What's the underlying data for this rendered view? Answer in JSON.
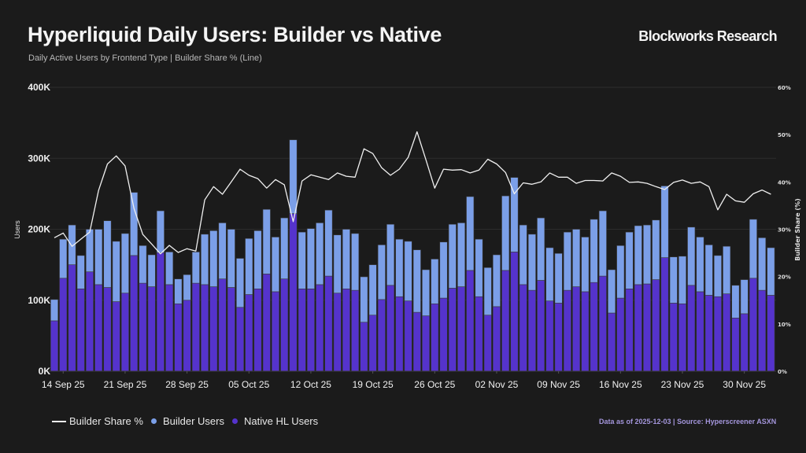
{
  "header": {
    "title": "Hyperliquid Daily Users: Builder vs Native",
    "subtitle": "Daily Active Users by Frontend Type | Builder Share % (Line)",
    "brand": "Blockworks Research"
  },
  "footer": {
    "source": "Data as of 2025-12-03 | Source: Hyperscreener ASXN"
  },
  "colors": {
    "background": "#1b1b1b",
    "builder": "#7b9fe8",
    "native": "#5533cc",
    "line": "#f0f0f0",
    "footer": "#a496dc"
  },
  "chart_data": {
    "type": "bar",
    "stacked": true,
    "title": "Hyperliquid Daily Users: Builder vs Native",
    "subtitle": "Daily Active Users by Frontend Type | Builder Share % (Line)",
    "ylabel": "Users",
    "y2label": "Builder Share (%)",
    "ylim": [
      0,
      400000
    ],
    "y2lim": [
      0,
      60
    ],
    "yticks": [
      "0K",
      "100K",
      "200K",
      "300K",
      "400K"
    ],
    "y2ticks": [
      "0%",
      "10%",
      "20%",
      "30%",
      "40%",
      "50%",
      "60%"
    ],
    "xticks": [
      "14 Sep 25",
      "21 Sep 25",
      "28 Sep 25",
      "05 Oct 25",
      "12 Oct 25",
      "19 Oct 25",
      "26 Oct 25",
      "02 Nov 25",
      "09 Nov 25",
      "16 Nov 25",
      "23 Nov 25",
      "30 Nov 25"
    ],
    "grid": true,
    "legend": "bottom-left",
    "legend_entries": [
      "Builder Share %",
      "Builder Users",
      "Native HL Users"
    ],
    "categories": [
      "2025-09-13",
      "2025-09-14",
      "2025-09-15",
      "2025-09-16",
      "2025-09-17",
      "2025-09-18",
      "2025-09-19",
      "2025-09-20",
      "2025-09-21",
      "2025-09-22",
      "2025-09-23",
      "2025-09-24",
      "2025-09-25",
      "2025-09-26",
      "2025-09-27",
      "2025-09-28",
      "2025-09-29",
      "2025-09-30",
      "2025-10-01",
      "2025-10-02",
      "2025-10-03",
      "2025-10-04",
      "2025-10-05",
      "2025-10-06",
      "2025-10-07",
      "2025-10-08",
      "2025-10-09",
      "2025-10-10",
      "2025-10-11",
      "2025-10-12",
      "2025-10-13",
      "2025-10-14",
      "2025-10-15",
      "2025-10-16",
      "2025-10-17",
      "2025-10-18",
      "2025-10-19",
      "2025-10-20",
      "2025-10-21",
      "2025-10-22",
      "2025-10-23",
      "2025-10-24",
      "2025-10-25",
      "2025-10-26",
      "2025-10-27",
      "2025-10-28",
      "2025-10-29",
      "2025-10-30",
      "2025-10-31",
      "2025-11-01",
      "2025-11-02",
      "2025-11-03",
      "2025-11-04",
      "2025-11-05",
      "2025-11-06",
      "2025-11-07",
      "2025-11-08",
      "2025-11-09",
      "2025-11-10",
      "2025-11-11",
      "2025-11-12",
      "2025-11-13",
      "2025-11-14",
      "2025-11-15",
      "2025-11-16",
      "2025-11-17",
      "2025-11-18",
      "2025-11-19",
      "2025-11-20",
      "2025-11-21",
      "2025-11-22",
      "2025-11-23",
      "2025-11-24",
      "2025-11-25",
      "2025-11-26",
      "2025-11-27",
      "2025-11-28",
      "2025-11-29",
      "2025-11-30",
      "2025-12-01",
      "2025-12-02",
      "2025-12-03"
    ],
    "series": [
      {
        "name": "Native HL Users",
        "kind": "bar",
        "values": [
          71000,
          131000,
          150000,
          116000,
          140000,
          122000,
          118000,
          98000,
          110000,
          163000,
          124000,
          119000,
          167000,
          122000,
          95000,
          100000,
          124000,
          122000,
          119000,
          130000,
          118000,
          90000,
          108000,
          116000,
          137000,
          112000,
          130000,
          222000,
          116000,
          116000,
          122000,
          134000,
          110000,
          116000,
          114000,
          69000,
          79000,
          101000,
          121000,
          105000,
          99000,
          83000,
          78000,
          95000,
          103000,
          117000,
          119000,
          142000,
          105000,
          79000,
          91000,
          142000,
          168000,
          122000,
          114000,
          128000,
          99000,
          96000,
          114000,
          119000,
          112000,
          125000,
          134000,
          82000,
          103000,
          116000,
          122000,
          123000,
          129000,
          160000,
          96000,
          95000,
          121000,
          112000,
          107000,
          105000,
          109000,
          75000,
          81000,
          131000,
          114000,
          107000
        ]
      },
      {
        "name": "Builder Users",
        "kind": "bar",
        "values": [
          30000,
          55000,
          56000,
          47000,
          60000,
          78000,
          94000,
          85000,
          84000,
          89000,
          53000,
          45000,
          59000,
          46000,
          35000,
          36000,
          44000,
          71000,
          79000,
          79000,
          82000,
          69000,
          79000,
          82000,
          91000,
          77000,
          86000,
          104000,
          80000,
          85000,
          87000,
          93000,
          82000,
          84000,
          80000,
          64000,
          71000,
          77000,
          86000,
          81000,
          84000,
          88000,
          65000,
          63000,
          79000,
          90000,
          90000,
          104000,
          81000,
          67000,
          73000,
          105000,
          105000,
          84000,
          79000,
          88000,
          75000,
          70000,
          82000,
          81000,
          77000,
          89000,
          92000,
          61000,
          74000,
          80000,
          83000,
          83000,
          84000,
          101000,
          65000,
          67000,
          82000,
          77000,
          71000,
          58000,
          67000,
          46000,
          48000,
          83000,
          74000,
          67000
        ]
      },
      {
        "name": "Builder Share %",
        "kind": "line",
        "axis": "right",
        "values": [
          28.2,
          29.2,
          26.4,
          27.9,
          29.4,
          38.2,
          43.8,
          45.5,
          43.4,
          34.4,
          28.9,
          26.9,
          24.8,
          26.6,
          25.1,
          25.9,
          25.4,
          36.2,
          39.0,
          37.4,
          40.0,
          42.7,
          41.4,
          40.7,
          38.7,
          40.5,
          39.4,
          31.6,
          40.2,
          41.5,
          41.0,
          40.5,
          41.9,
          41.2,
          41.0,
          47.0,
          46.0,
          43.0,
          41.4,
          42.7,
          45.2,
          50.6,
          44.7,
          38.7,
          42.7,
          42.5,
          42.6,
          41.9,
          42.5,
          44.8,
          43.8,
          42.0,
          37.5,
          39.8,
          39.5,
          40.0,
          41.9,
          41.0,
          41.0,
          39.7,
          40.3,
          40.3,
          40.2,
          41.9,
          41.2,
          39.9,
          40.0,
          39.7,
          39.0,
          38.4,
          39.9,
          40.4,
          39.7,
          40.0,
          39.0,
          34.1,
          37.4,
          36.0,
          35.7,
          37.5,
          38.3,
          37.4
        ]
      }
    ]
  }
}
